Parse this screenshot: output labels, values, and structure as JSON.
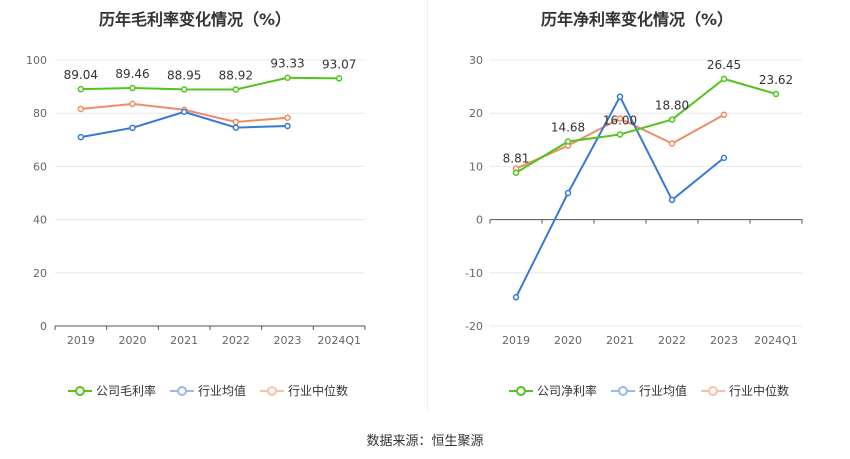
{
  "source_text": "数据来源：恒生聚源",
  "colors": {
    "company": "#52c41a",
    "industry_avg": "#3a78d8",
    "industry_median": "#f08c65"
  },
  "chart_data": [
    {
      "type": "line",
      "title": "历年毛利率变化情况（%）",
      "categories": [
        "2019",
        "2020",
        "2021",
        "2022",
        "2023",
        "2024Q1"
      ],
      "ylim": [
        0,
        100
      ],
      "yticks": [
        0,
        20,
        40,
        60,
        80,
        100
      ],
      "grid": true,
      "legend_position": "bottom",
      "series": [
        {
          "name": "公司毛利率",
          "color": "#52c41a",
          "values": [
            89.04,
            89.46,
            88.95,
            88.92,
            93.33,
            93.07
          ],
          "labels": [
            "89.04",
            "89.46",
            "88.95",
            "88.92",
            "93.33",
            "93.07"
          ]
        },
        {
          "name": "行业均值",
          "color": "#3a78d8",
          "values": [
            71.0,
            74.5,
            80.5,
            74.6,
            75.2,
            null
          ]
        },
        {
          "name": "行业中位数",
          "color": "#f08c65",
          "values": [
            81.6,
            83.5,
            81.3,
            76.7,
            78.3,
            null
          ]
        }
      ]
    },
    {
      "type": "line",
      "title": "历年净利率变化情况（%）",
      "categories": [
        "2019",
        "2020",
        "2021",
        "2022",
        "2023",
        "2024Q1"
      ],
      "ylim": [
        -20,
        30
      ],
      "yticks": [
        -20,
        -10,
        0,
        10,
        20,
        30
      ],
      "grid": true,
      "legend_position": "bottom",
      "series": [
        {
          "name": "公司净利率",
          "color": "#52c41a",
          "values": [
            8.81,
            14.68,
            16.0,
            18.8,
            26.45,
            23.62
          ],
          "labels": [
            "8.81",
            "14.68",
            "16.00",
            "18.80",
            "26.45",
            "23.62"
          ]
        },
        {
          "name": "行业均值",
          "color": "#3a78d8",
          "values": [
            -14.6,
            5.0,
            23.1,
            3.7,
            11.6,
            null
          ]
        },
        {
          "name": "行业中位数",
          "color": "#f08c65",
          "values": [
            9.6,
            13.9,
            19.0,
            14.3,
            19.7,
            null
          ]
        }
      ]
    }
  ]
}
